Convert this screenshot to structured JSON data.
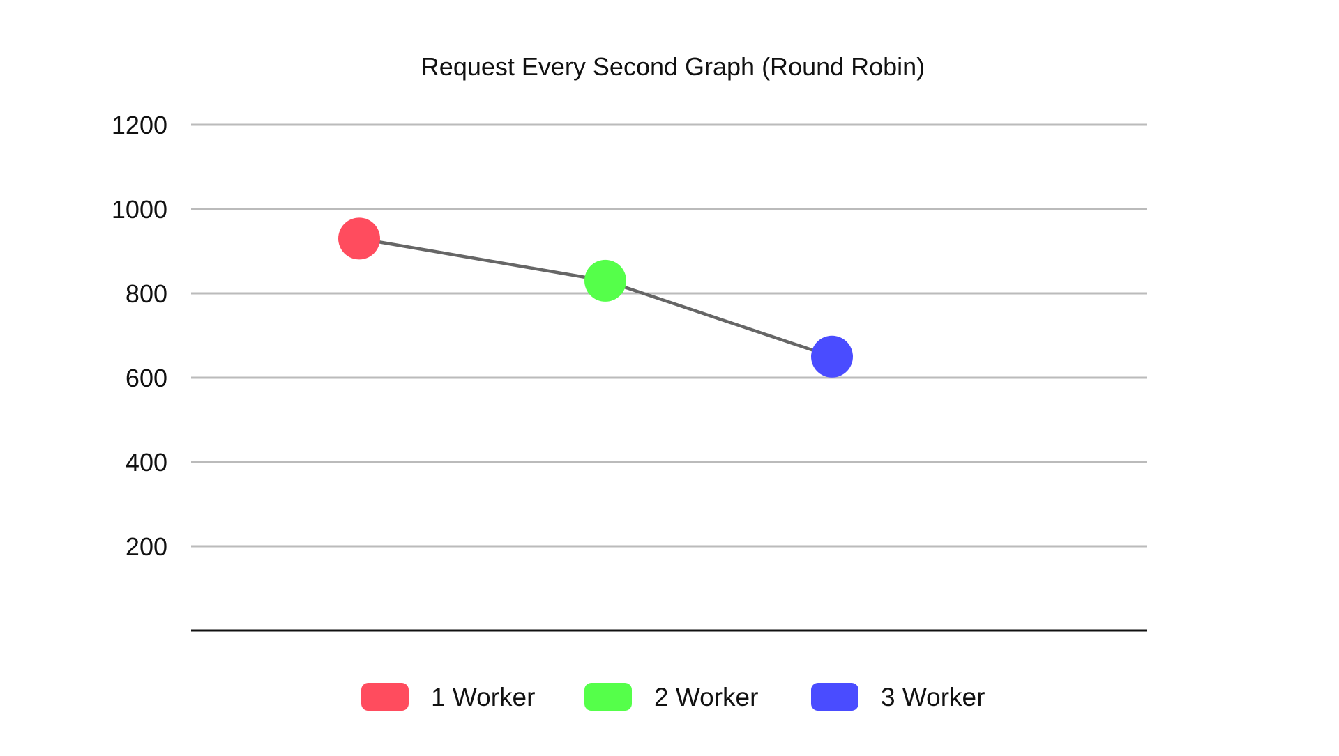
{
  "chart_data": {
    "type": "line",
    "title": "Request Every Second Graph (Round Robin)",
    "xlabel": "",
    "ylabel": "",
    "ylim": [
      0,
      1200
    ],
    "yticks": [
      200,
      400,
      600,
      800,
      1000,
      1200
    ],
    "grid": true,
    "legend_position": "bottom",
    "categories": [
      "1 Worker",
      "2 Worker",
      "3 Worker"
    ],
    "values": [
      930,
      830,
      650
    ],
    "point_colors": [
      "#FF4C5E",
      "#55FF4A",
      "#4A4CFF"
    ],
    "line_color": "#666666",
    "grid_color": "#BBBBBB",
    "axis_color": "#111111"
  }
}
